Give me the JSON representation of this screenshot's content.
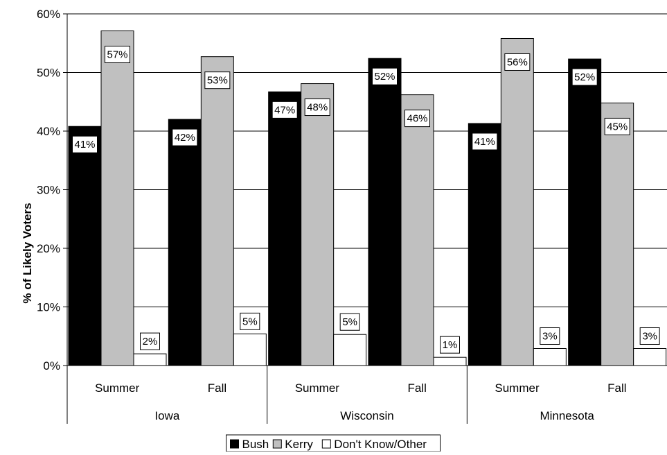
{
  "chart_data": {
    "type": "bar",
    "title": "",
    "xlabel": "",
    "ylabel": "% of Likely Voters",
    "ylim": [
      0,
      60
    ],
    "yticks": [
      0,
      10,
      20,
      30,
      40,
      50,
      60
    ],
    "ytick_labels": [
      "0%",
      "10%",
      "20%",
      "30%",
      "40%",
      "50%",
      "60%"
    ],
    "grid": true,
    "legend_position": "bottom-center",
    "groups": [
      {
        "label": "Iowa",
        "categories": [
          "Summer",
          "Fall"
        ]
      },
      {
        "label": "Wisconsin",
        "categories": [
          "Summer",
          "Fall"
        ]
      },
      {
        "label": "Minnesota",
        "categories": [
          "Summer",
          "Fall"
        ]
      }
    ],
    "categories": [
      "Summer",
      "Fall",
      "Summer",
      "Fall",
      "Summer",
      "Fall"
    ],
    "series": [
      {
        "name": "Bush",
        "color": "#000000",
        "values": [
          40.8,
          42.0,
          46.7,
          52.4,
          41.3,
          52.3
        ],
        "labels": [
          "41%",
          "42%",
          "47%",
          "52%",
          "41%",
          "52%"
        ]
      },
      {
        "name": "Kerry",
        "color": "#c0c0c0",
        "values": [
          57.1,
          52.7,
          48.1,
          46.2,
          55.8,
          44.8
        ],
        "labels": [
          "57%",
          "53%",
          "48%",
          "46%",
          "56%",
          "45%"
        ]
      },
      {
        "name": "Don't Know/Other",
        "color": "#ffffff",
        "values": [
          2.0,
          5.4,
          5.3,
          1.4,
          2.9,
          2.9
        ],
        "labels": [
          "2%",
          "5%",
          "5%",
          "1%",
          "3%",
          "3%"
        ]
      }
    ]
  }
}
